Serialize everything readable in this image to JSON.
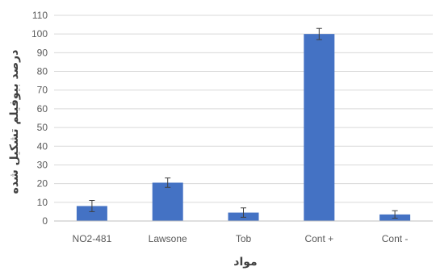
{
  "chart_data": {
    "type": "bar",
    "title": "",
    "xlabel": "مواد",
    "ylabel": "درصد بیوفیلم تشکیل شده",
    "categories": [
      "NO2-481",
      "Lawsone",
      "Tob",
      "Cont +",
      "Cont -"
    ],
    "values": [
      8,
      20.5,
      4.5,
      100,
      3.5
    ],
    "error": [
      3,
      2.5,
      2.5,
      3,
      2
    ],
    "ylim": [
      0,
      110
    ],
    "yticks": [
      0,
      10,
      20,
      30,
      40,
      50,
      60,
      70,
      80,
      90,
      100,
      110
    ],
    "grid": true,
    "legend": "none",
    "bar_color": "#4472C4",
    "grid_color": "#D9D9D9",
    "axis_color": "#BFBFBF",
    "error_color": "#404040"
  }
}
